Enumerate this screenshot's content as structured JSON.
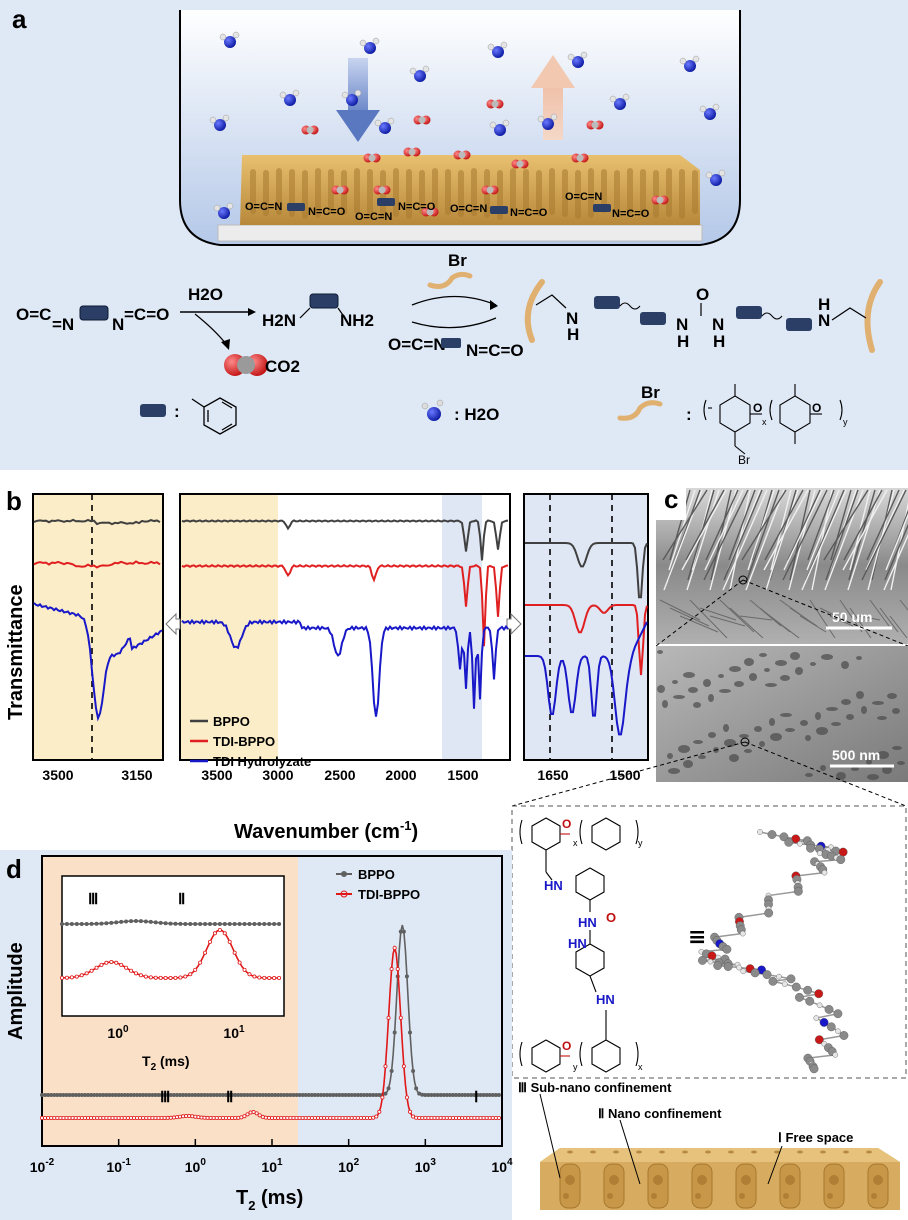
{
  "panel_a": {
    "letter": "a",
    "scheme": {
      "reactant": "O=C=N ▬ N=C=O",
      "water": "H2O",
      "diamine_left": "H2N",
      "diamine_right": "NH2",
      "co2": "CO2",
      "br_top": "Br",
      "legend_colon_benzene": ":",
      "legend_water": ": H2O",
      "legend_bppo_colon": ":",
      "bppo_br": "Br",
      "bppo_br2": "Br",
      "bppo_x": "x",
      "bppo_y": "y"
    }
  },
  "panel_b": {
    "letter": "b",
    "ylabel": "Transmittance",
    "xlabel": "Wavenumber (cm",
    "xlabel_sup": "-1",
    "xlabel_end": ")",
    "legend": [
      "BPPO",
      "TDI-BPPO",
      "TDI Hydrolyzate"
    ],
    "colors": {
      "BPPO": "#404040",
      "TDI-BPPO": "#e02020",
      "TDI Hydrolyzate": "#1818c8"
    },
    "left_ticks": [
      "3500",
      "3150"
    ],
    "mid_ticks": [
      "3500",
      "3000",
      "2500",
      "2000",
      "1500"
    ],
    "right_ticks": [
      "1650",
      "1500"
    ]
  },
  "panel_c": {
    "letter": "c",
    "scale_top": "50 um",
    "scale_bottom": "500 nm",
    "structure_x": "x",
    "structure_y": "y",
    "equiv": "≡"
  },
  "panel_d": {
    "letter": "d",
    "ylabel": "Amplitude",
    "xlabel": "T",
    "xlabel_sub": "2",
    "xlabel_unit": " (ms)",
    "legend": [
      "BPPO",
      "TDI-BPPO"
    ],
    "colors": {
      "BPPO": "#606060",
      "TDI-BPPO": "#e01818"
    },
    "region_labels": [
      "Ⅲ",
      "Ⅱ",
      "Ⅰ"
    ],
    "inset_xlabel": "T",
    "inset_xlabel_sub": "2",
    "inset_xlabel_unit": " (ms)",
    "inset_ticks": [
      "10",
      "10"
    ],
    "inset_tick_sup": [
      "0",
      "1"
    ],
    "ticks": [
      "10",
      "10",
      "10",
      "10",
      "10",
      "10",
      "10"
    ],
    "tick_sup": [
      "-2",
      "-1",
      "0",
      "1",
      "2",
      "3",
      "4"
    ],
    "confinement": [
      "Ⅲ Sub-nano confinement",
      "Ⅱ Nano confinement",
      "Ⅰ Free space"
    ]
  },
  "chart_data": [
    {
      "type": "line",
      "panel": "b",
      "xlabel": "Wavenumber (cm-1)",
      "ylabel": "Transmittance",
      "x_reversed": true,
      "series": [
        {
          "name": "BPPO",
          "peaks_cm-1": [
            2920,
            1605,
            1470,
            1190
          ]
        },
        {
          "name": "TDI-BPPO",
          "peaks_cm-1": [
            2920,
            2270,
            1640,
            1540,
            1470
          ]
        },
        {
          "name": "TDI Hydrolyzate",
          "peaks_cm-1": [
            3300,
            2270,
            1640,
            1600,
            1540,
            1510
          ]
        }
      ],
      "reference_lines_cm-1": [
        3360,
        1670,
        1545
      ]
    },
    {
      "type": "line",
      "panel": "d",
      "xlabel": "T2 (ms)",
      "ylabel": "Amplitude",
      "x_scale": "log",
      "xlim": [
        0.01,
        10000
      ],
      "series": [
        {
          "name": "BPPO",
          "peak_T2_ms": 500
        },
        {
          "name": "TDI-BPPO",
          "peak_T2_ms": 400,
          "minor_peaks_T2_ms": [
            0.8,
            6
          ]
        }
      ]
    }
  ]
}
